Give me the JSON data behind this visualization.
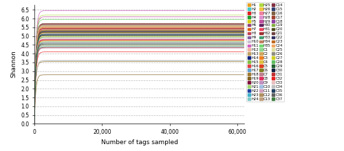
{
  "title": "",
  "xlabel": "Number of tags sampled",
  "ylabel": "Shannon",
  "xlim": [
    0,
    62000
  ],
  "ylim": [
    0.0,
    6.8
  ],
  "yticks": [
    0.0,
    0.5,
    1.0,
    1.5,
    2.0,
    2.5,
    3.0,
    3.5,
    4.0,
    4.5,
    5.0,
    5.5,
    6.0,
    6.5
  ],
  "xticks": [
    0,
    20000,
    40000,
    60000
  ],
  "xticklabels": [
    "0",
    "20,000",
    "40,000",
    "60,000"
  ],
  "figsize": [
    5.0,
    2.2
  ],
  "dpi": 100,
  "k_rate": 0.0025,
  "samples": {
    "H1": {
      "color": "#E8A020",
      "plateau": 5.3
    },
    "H2": {
      "color": "#40C8C8",
      "plateau": 5.6
    },
    "H3": {
      "color": "#E02020",
      "plateau": 5.45
    },
    "H4": {
      "color": "#20A030",
      "plateau": 5.7
    },
    "H5": {
      "color": "#D8D010",
      "plateau": 5.5
    },
    "H6": {
      "color": "#904080",
      "plateau": 5.55
    },
    "H7": {
      "color": "#E06010",
      "plateau": 5.48
    },
    "H8": {
      "color": "#C04050",
      "plateau": 5.42
    },
    "H9": {
      "color": "#8060A0",
      "plateau": 4.8
    },
    "H10": {
      "color": "#C8C0D0",
      "plateau": 5.52
    },
    "H11": {
      "color": "#D060C0",
      "plateau": 6.45
    },
    "H12": {
      "color": "#F0B0A0",
      "plateau": 5.53
    },
    "H13": {
      "color": "#C0A060",
      "plateau": 4.4
    },
    "H14": {
      "color": "#102080",
      "plateau": 5.1
    },
    "H15": {
      "color": "#80C040",
      "plateau": 5.35
    },
    "H16": {
      "color": "#E04040",
      "plateau": 4.75
    },
    "H17": {
      "color": "#60A0D0",
      "plateau": 5.25
    },
    "H18": {
      "color": "#A07830",
      "plateau": 3.55
    },
    "H19": {
      "color": "#806020",
      "plateau": 2.8
    },
    "H20": {
      "color": "#801040",
      "plateau": 5.57
    },
    "H21": {
      "color": "#A0D870",
      "plateau": 4.45
    },
    "H22": {
      "color": "#2040A0",
      "plateau": 5.05
    },
    "H23": {
      "color": "#40B0C8",
      "plateau": 4.4
    },
    "H24": {
      "color": "#80C8C8",
      "plateau": 3.6
    },
    "H25": {
      "color": "#B0D840",
      "plateau": 6.2
    },
    "H26": {
      "color": "#F0C040",
      "plateau": 5.55
    },
    "H27": {
      "color": "#F080A0",
      "plateau": 5.58
    },
    "H28": {
      "color": "#E090D0",
      "plateau": 5.62
    },
    "H29": {
      "color": "#C050A0",
      "plateau": 6.1
    },
    "H30": {
      "color": "#602060",
      "plateau": 5.3
    },
    "H31": {
      "color": "#F04060",
      "plateau": 5.38
    },
    "H32": {
      "color": "#A03030",
      "plateau": 5.44
    },
    "H33": {
      "color": "#40A070",
      "plateau": 4.68
    },
    "H34": {
      "color": "#C08060",
      "plateau": 5.0
    },
    "H35": {
      "color": "#70D870",
      "plateau": 5.95
    },
    "C1": {
      "color": "#90D890",
      "plateau": 5.62
    },
    "C2": {
      "color": "#D0A860",
      "plateau": 5.22
    },
    "C3": {
      "color": "#F08020",
      "plateau": 5.18
    },
    "C4": {
      "color": "#E0C040",
      "plateau": 4.72
    },
    "C5": {
      "color": "#E04020",
      "plateau": 4.78
    },
    "C6": {
      "color": "#808020",
      "plateau": 5.2
    },
    "C7": {
      "color": "#C08090",
      "plateau": 5.4
    },
    "C8": {
      "color": "#E03060",
      "plateau": 4.82
    },
    "C9": {
      "color": "#C090C0",
      "plateau": 4.32
    },
    "C10": {
      "color": "#A0C0E0",
      "plateau": 4.35
    },
    "C11": {
      "color": "#D0A0C0",
      "plateau": 4.48
    },
    "C12": {
      "color": "#B09060",
      "plateau": 4.9
    },
    "C13": {
      "color": "#C0A080",
      "plateau": 4.62
    },
    "C14": {
      "color": "#803040",
      "plateau": 5.72
    },
    "C15": {
      "color": "#304070",
      "plateau": 5.68
    },
    "C16": {
      "color": "#806040",
      "plateau": 5.64
    },
    "C17": {
      "color": "#A04030",
      "plateau": 5.7
    },
    "C18": {
      "color": "#9040A0",
      "plateau": 5.66
    },
    "C19": {
      "color": "#80B040",
      "plateau": 5.3
    },
    "C20": {
      "color": "#505020",
      "plateau": 5.22
    },
    "C21": {
      "color": "#704040",
      "plateau": 5.25
    },
    "C22": {
      "color": "#303060",
      "plateau": 5.28
    },
    "C23": {
      "color": "#C06820",
      "plateau": 5.34
    },
    "C24": {
      "color": "#F0A860",
      "plateau": 5.65
    },
    "C25": {
      "color": "#E0E0A0",
      "plateau": 5.58
    },
    "C26": {
      "color": "#909080",
      "plateau": 5.15
    },
    "C27": {
      "color": "#D0D020",
      "plateau": 5.0
    },
    "C28": {
      "color": "#60C060",
      "plateau": 4.95
    },
    "C29": {
      "color": "#206030",
      "plateau": 5.1
    },
    "C30": {
      "color": "#102040",
      "plateau": 5.06
    },
    "C31": {
      "color": "#C03030",
      "plateau": 4.35
    },
    "C32": {
      "color": "#E82020",
      "plateau": 4.1
    },
    "C33": {
      "color": "#E8C0C0",
      "plateau": 3.62
    },
    "C34": {
      "color": "#C0C0C0",
      "plateau": 4.9
    },
    "C35": {
      "color": "#204060",
      "plateau": 4.6
    },
    "C36": {
      "color": "#606060",
      "plateau": 4.55
    },
    "C37": {
      "color": "#408040",
      "plateau": 4.52
    }
  },
  "legend_fontsize": 3.8,
  "axis_fontsize": 6.5,
  "tick_fontsize": 5.5
}
